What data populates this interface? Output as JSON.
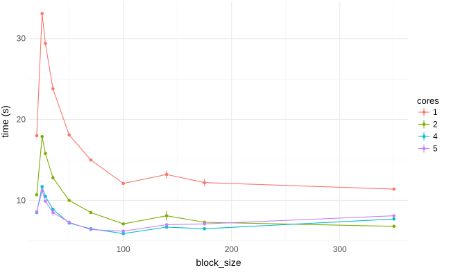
{
  "chart_data": {
    "type": "line",
    "xlabel": "block_size",
    "ylabel": "time (s)",
    "xlim": [
      13,
      363
    ],
    "ylim": [
      4.9,
      34.6
    ],
    "x_ticks": [
      100,
      200,
      300
    ],
    "y_ticks": [
      10,
      20,
      30
    ],
    "grid": true,
    "legend": {
      "title": "cores",
      "position": "right"
    },
    "series": [
      {
        "name": "1",
        "color": "#F8766D",
        "points": [
          {
            "x": 20,
            "y": 18.0
          },
          {
            "x": 25,
            "y": 33.1
          },
          {
            "x": 28,
            "y": 29.4
          },
          {
            "x": 35,
            "y": 23.8
          },
          {
            "x": 50,
            "y": 18.1
          },
          {
            "x": 70,
            "y": 15.0
          },
          {
            "x": 100,
            "y": 12.1
          },
          {
            "x": 140,
            "y": 13.2,
            "err": 0.5
          },
          {
            "x": 175,
            "y": 12.2,
            "err": 0.5
          },
          {
            "x": 350,
            "y": 11.4
          }
        ]
      },
      {
        "name": "2",
        "color": "#7CAE00",
        "points": [
          {
            "x": 20,
            "y": 10.7
          },
          {
            "x": 25,
            "y": 17.9
          },
          {
            "x": 28,
            "y": 15.8
          },
          {
            "x": 35,
            "y": 12.8
          },
          {
            "x": 50,
            "y": 10.0
          },
          {
            "x": 70,
            "y": 8.5
          },
          {
            "x": 100,
            "y": 7.1
          },
          {
            "x": 140,
            "y": 8.1,
            "err": 0.6
          },
          {
            "x": 175,
            "y": 7.3
          },
          {
            "x": 350,
            "y": 6.8
          }
        ]
      },
      {
        "name": "4",
        "color": "#00BFC4",
        "points": [
          {
            "x": 20,
            "y": 8.5
          },
          {
            "x": 25,
            "y": 11.7
          },
          {
            "x": 28,
            "y": 10.5
          },
          {
            "x": 35,
            "y": 8.9
          },
          {
            "x": 50,
            "y": 7.2
          },
          {
            "x": 70,
            "y": 6.5
          },
          {
            "x": 100,
            "y": 5.9
          },
          {
            "x": 140,
            "y": 6.7
          },
          {
            "x": 175,
            "y": 6.5
          },
          {
            "x": 350,
            "y": 7.7
          }
        ]
      },
      {
        "name": "5",
        "color": "#C77CFF",
        "points": [
          {
            "x": 20,
            "y": 8.6
          },
          {
            "x": 25,
            "y": 11.2
          },
          {
            "x": 28,
            "y": 9.9
          },
          {
            "x": 35,
            "y": 8.5,
            "err": 0.4
          },
          {
            "x": 50,
            "y": 7.3
          },
          {
            "x": 70,
            "y": 6.4
          },
          {
            "x": 100,
            "y": 6.2
          },
          {
            "x": 140,
            "y": 7.0
          },
          {
            "x": 175,
            "y": 7.1
          },
          {
            "x": 350,
            "y": 8.1
          }
        ]
      }
    ]
  }
}
